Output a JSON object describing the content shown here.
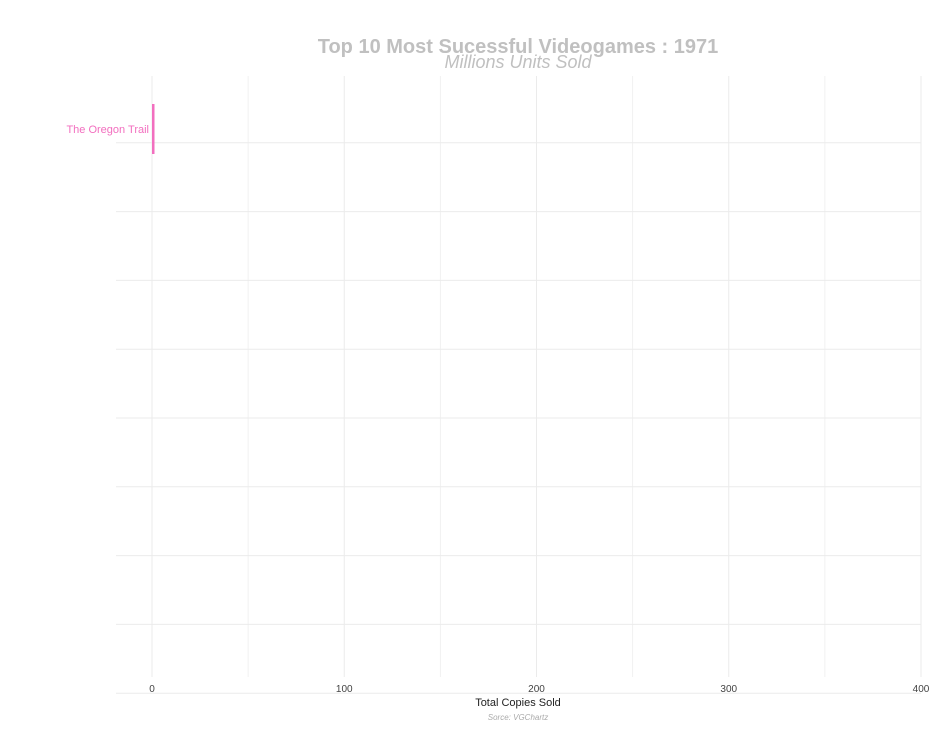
{
  "chart_data": {
    "type": "bar",
    "orientation": "horizontal",
    "title": "Top 10 Most Sucessful Videogames : 1971",
    "subtitle": "Millions Units Sold",
    "xlabel": "Total Copies Sold",
    "caption": "Sorce: VGChartz",
    "xlim": [
      0,
      400
    ],
    "x_ticks": [
      0,
      100,
      200,
      300,
      400
    ],
    "slots": 10,
    "grid": true,
    "legend": "none",
    "colors": {
      "bar": "#f26fbf",
      "title": "#c0c0c0",
      "grid": "#ebebeb"
    },
    "categories": [
      "The Oregon Trail"
    ],
    "values": [
      1
    ]
  }
}
